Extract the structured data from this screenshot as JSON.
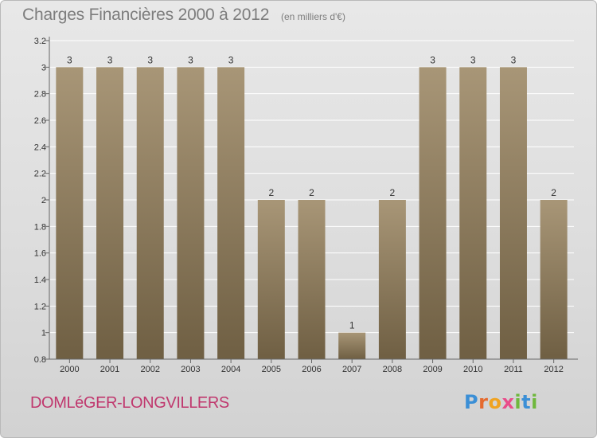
{
  "header": {
    "title": "Charges Financières 2000 à 2012",
    "unit": "(en milliers d'€)"
  },
  "footer": {
    "commune": "DOMLéGER-LONGVILLERS",
    "logo_letters": [
      "P",
      "r",
      "o",
      "x",
      "i",
      "t",
      "i"
    ]
  },
  "colors": {
    "bar_light": "#a89677",
    "bar_dark": "#6f5f43",
    "title": "#7d7d7d",
    "commune": "#c0386e"
  },
  "chart_data": {
    "type": "bar",
    "title": "Charges Financières 2000 à 2012",
    "subtitle": "(en milliers d'€)",
    "categories": [
      "2000",
      "2001",
      "2002",
      "2003",
      "2004",
      "2005",
      "2006",
      "2007",
      "2008",
      "2009",
      "2010",
      "2011",
      "2012"
    ],
    "values": [
      3,
      3,
      3,
      3,
      3,
      2,
      2,
      1,
      2,
      3,
      3,
      3,
      2
    ],
    "data_labels": [
      "3",
      "3",
      "3",
      "3",
      "3",
      "2",
      "2",
      "1",
      "2",
      "3",
      "3",
      "3",
      "2"
    ],
    "ylim": [
      0.8,
      3.2
    ],
    "yticks": [
      0.8,
      1,
      1.2,
      1.4,
      1.6,
      1.8,
      2,
      2.2,
      2.4,
      2.6,
      2.8,
      3,
      3.2
    ],
    "ytick_labels": [
      "0.8",
      "1",
      "1.2",
      "1.4",
      "1.6",
      "1.8",
      "2",
      "2.2",
      "2.4",
      "2.6",
      "2.8",
      "3",
      "3.2"
    ],
    "grid": true,
    "legend": "none"
  }
}
